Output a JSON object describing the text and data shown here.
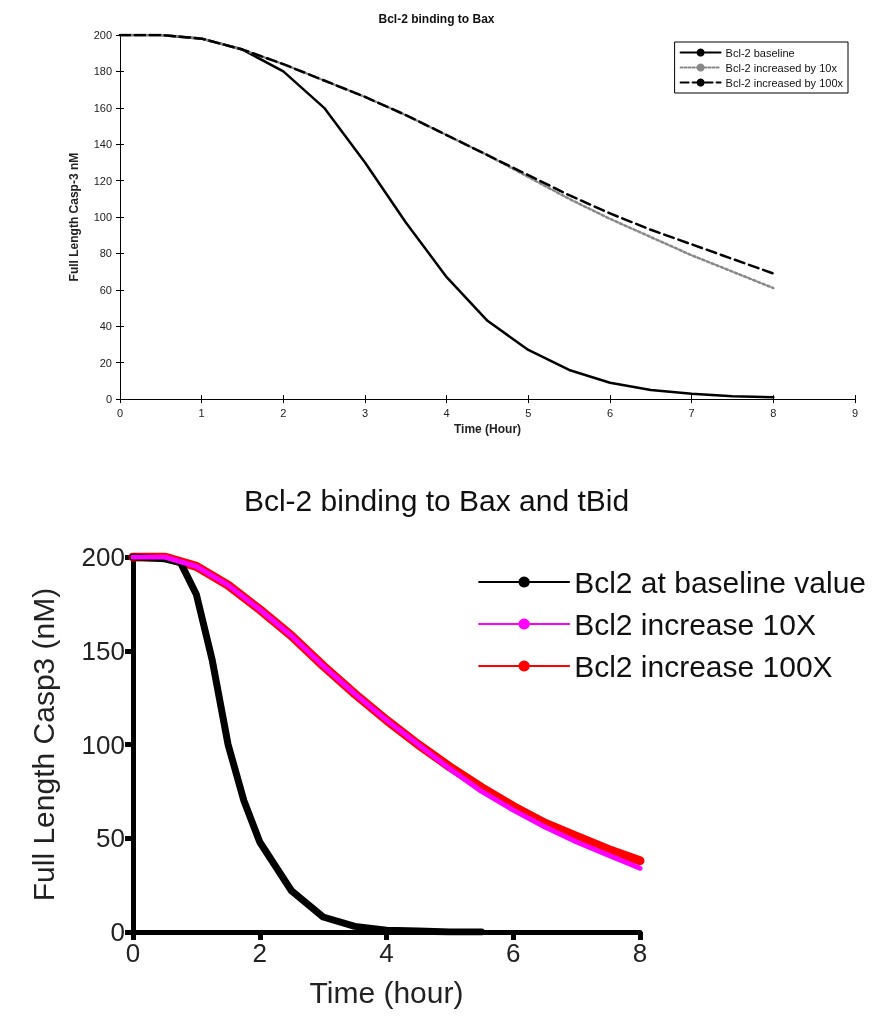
{
  "chart_data": [
    {
      "type": "line",
      "title": "Bcl-2 binding to Bax",
      "xlabel": "Time (Hour)",
      "ylabel": "Full Length Casp-3 nM",
      "x": [
        0,
        0.5,
        1,
        1.5,
        2,
        2.5,
        3,
        3.5,
        4,
        4.5,
        5,
        5.5,
        6,
        6.5,
        7,
        7.5,
        8
      ],
      "xlim": [
        0,
        9
      ],
      "xticks": [
        0,
        1,
        2,
        3,
        4,
        5,
        6,
        7,
        8,
        9
      ],
      "ylim": [
        0,
        200
      ],
      "yticks": [
        0,
        20,
        40,
        60,
        80,
        100,
        120,
        140,
        160,
        180,
        200
      ],
      "grid": false,
      "legend": "top right",
      "marker": "none",
      "series": [
        {
          "name": "Bcl-2 baseline",
          "color": "#000000",
          "line_style": "solid",
          "values": [
            200,
            200,
            198,
            192,
            180,
            160,
            130,
            97,
            67,
            43,
            27,
            16,
            9,
            5,
            3,
            1.5,
            1
          ]
        },
        {
          "name": "Bcl-2 increased by 10x",
          "color": "#888888",
          "line_style": "dotted",
          "values": [
            200,
            200,
            198,
            192,
            184,
            175,
            166,
            156,
            145,
            134,
            122,
            110,
            99,
            89,
            79,
            70,
            61
          ]
        },
        {
          "name": "Bcl-2 increased by 100x",
          "color": "#000000",
          "line_style": "dashed",
          "values": [
            200,
            200,
            198,
            192,
            184,
            175,
            166,
            156,
            145,
            134,
            123,
            112,
            102,
            93,
            85,
            77,
            69
          ]
        }
      ]
    },
    {
      "type": "line",
      "title": "Bcl-2 binding to Bax and tBid",
      "xlabel": "Time (hour)",
      "ylabel": "Full Length Casp3 (nM)",
      "xlim": [
        0,
        8
      ],
      "xticks": [
        0,
        2,
        4,
        6,
        8
      ],
      "ylim": [
        0,
        200
      ],
      "yticks": [
        0,
        50,
        100,
        150,
        200
      ],
      "grid": false,
      "legend": "top right",
      "marker": "none",
      "line_style": "solid",
      "series": [
        {
          "name": "Bcl2 at baseline value",
          "color": "#000000",
          "x": [
            0,
            0.5,
            0.75,
            1,
            1.25,
            1.5,
            1.75,
            2,
            2.5,
            3,
            3.5,
            4,
            4.5,
            5,
            5.5
          ],
          "values": [
            200,
            199,
            197,
            180,
            145,
            100,
            70,
            48,
            22,
            8,
            3,
            1,
            0.5,
            0,
            0
          ]
        },
        {
          "name": "Bcl2 increase 10X",
          "color": "#ff00ff",
          "x": [
            0,
            0.5,
            1,
            1.5,
            2,
            2.5,
            3,
            3.5,
            4,
            4.5,
            5,
            5.5,
            6,
            6.5,
            7,
            7.5,
            8
          ],
          "values": [
            200,
            200,
            195,
            185,
            172,
            158,
            142,
            127,
            113,
            100,
            87,
            75,
            65,
            56,
            48,
            41,
            34
          ]
        },
        {
          "name": "Bcl2 increase 100X",
          "color": "#ff0000",
          "x": [
            0,
            0.5,
            1,
            1.5,
            2,
            2.5,
            3,
            3.5,
            4,
            4.5,
            5,
            5.5,
            6,
            6.5,
            7,
            7.5,
            8
          ],
          "values": [
            200,
            200,
            195,
            185,
            172,
            158,
            142,
            127,
            113,
            100,
            88,
            77,
            67,
            58,
            51,
            44,
            38
          ]
        }
      ]
    }
  ]
}
